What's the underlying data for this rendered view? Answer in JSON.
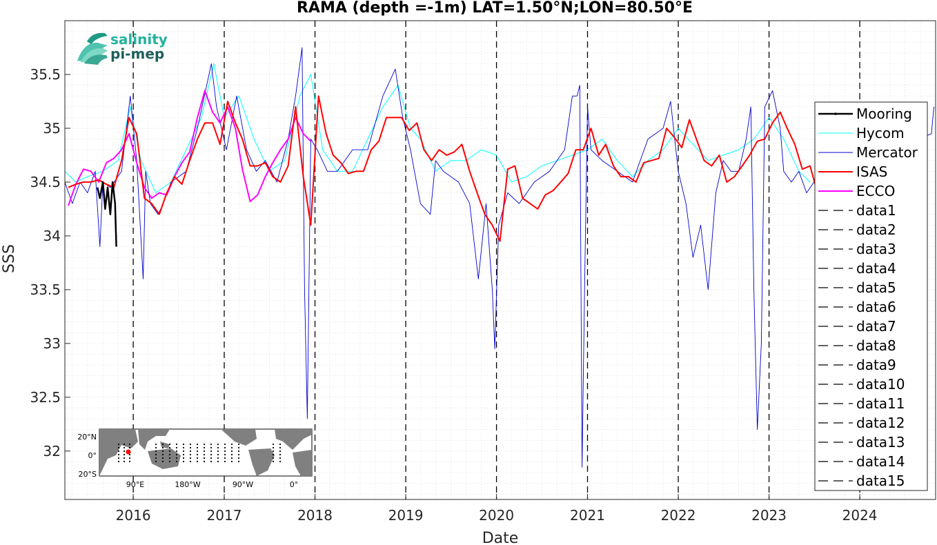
{
  "chart_data": {
    "type": "line",
    "title": "RAMA (depth =-1m) LAT=1.50°N;LON=80.50°E",
    "xlabel": "Date",
    "ylabel": "SSS",
    "xlim": [
      "2015-04-01",
      "2024-11-01"
    ],
    "ylim": [
      31.55,
      36.0
    ],
    "x_ticks": [
      "2016",
      "2017",
      "2018",
      "2019",
      "2020",
      "2021",
      "2022",
      "2023",
      "2024"
    ],
    "y_ticks": [
      "32",
      "32.5",
      "33",
      "33.5",
      "34",
      "34.5",
      "35",
      "35.5"
    ],
    "grid": "on (minor dotted)",
    "legend_position": "right",
    "colors": {
      "Mooring": "#000000",
      "Hycom": "#00ffff",
      "Mercator": "#0000cd",
      "ISAS": "#ff0000",
      "ECCO": "#ff00ff",
      "dashed": "#000000"
    },
    "series": [
      {
        "name": "Mooring",
        "x": [
          "2015-08-10",
          "2015-08-20",
          "2015-09-01",
          "2015-09-10",
          "2015-09-20",
          "2015-10-01",
          "2015-10-10",
          "2015-10-20",
          "2015-10-25"
        ],
        "y": [
          34.45,
          34.35,
          34.5,
          34.25,
          34.45,
          34.2,
          34.5,
          34.3,
          33.9
        ]
      },
      {
        "name": "Hycom",
        "x": [
          "2015-04-01",
          "2015-05-15",
          "2015-07-01",
          "2015-09-01",
          "2015-11-01",
          "2015-12-20",
          "2016-02-01",
          "2016-04-01",
          "2016-06-01",
          "2016-08-01",
          "2016-10-01",
          "2016-11-20",
          "2017-01-01",
          "2017-03-01",
          "2017-05-01",
          "2017-07-01",
          "2017-09-01",
          "2017-11-01",
          "2017-12-15",
          "2018-02-01",
          "2018-04-01",
          "2018-06-01",
          "2018-08-01",
          "2018-10-01",
          "2018-12-01",
          "2019-01-20",
          "2019-03-01",
          "2019-05-01",
          "2019-07-01",
          "2019-09-01",
          "2019-11-01",
          "2020-01-01",
          "2020-03-01",
          "2020-05-01",
          "2020-07-01",
          "2020-09-01",
          "2020-11-01",
          "2021-01-01",
          "2021-03-01",
          "2021-05-01",
          "2021-07-01",
          "2021-09-01",
          "2021-11-01",
          "2022-01-01",
          "2022-03-01",
          "2022-05-01",
          "2022-07-01",
          "2022-09-01",
          "2022-11-01",
          "2023-01-01",
          "2023-03-01",
          "2023-05-01",
          "2023-06-15"
        ],
        "y": [
          34.6,
          34.5,
          34.55,
          34.6,
          34.7,
          35.2,
          34.7,
          34.4,
          34.5,
          34.8,
          35.1,
          35.6,
          35.1,
          35.3,
          34.9,
          34.6,
          34.7,
          35.3,
          35.5,
          34.8,
          34.6,
          34.6,
          34.9,
          35.2,
          35.4,
          35.0,
          34.9,
          34.6,
          34.7,
          34.7,
          34.8,
          34.75,
          34.5,
          34.55,
          34.65,
          34.7,
          34.75,
          34.8,
          34.9,
          34.7,
          34.55,
          34.7,
          34.8,
          35.0,
          34.85,
          34.7,
          34.75,
          34.8,
          34.9,
          35.1,
          34.9,
          34.6,
          34.5
        ]
      },
      {
        "name": "Mercator",
        "x": [
          "2015-04-01",
          "2015-05-01",
          "2015-06-01",
          "2015-07-01",
          "2015-08-01",
          "2015-08-20",
          "2015-09-01",
          "2015-10-01",
          "2015-11-15",
          "2015-12-20",
          "2016-01-15",
          "2016-02-10",
          "2016-02-20",
          "2016-03-10",
          "2016-04-10",
          "2016-05-01",
          "2016-06-01",
          "2016-08-01",
          "2016-09-15",
          "2016-11-10",
          "2016-12-01",
          "2017-01-10",
          "2017-02-20",
          "2017-04-01",
          "2017-05-10",
          "2017-06-15",
          "2017-08-01",
          "2017-09-15",
          "2017-10-15",
          "2017-11-10",
          "2017-11-20",
          "2017-12-01",
          "2017-12-15",
          "2018-01-10",
          "2018-02-20",
          "2018-04-01",
          "2018-06-01",
          "2018-08-01",
          "2018-10-01",
          "2018-11-20",
          "2018-12-20",
          "2019-01-20",
          "2019-03-01",
          "2019-04-10",
          "2019-05-01",
          "2019-06-01",
          "2019-08-01",
          "2019-09-15",
          "2019-10-20",
          "2019-11-20",
          "2019-12-15",
          "2019-12-25",
          "2020-01-10",
          "2020-02-15",
          "2020-04-01",
          "2020-06-01",
          "2020-08-01",
          "2020-10-01",
          "2020-11-01",
          "2020-11-20",
          "2020-12-01",
          "2020-12-10",
          "2020-12-20",
          "2021-01-01",
          "2021-01-15",
          "2021-03-01",
          "2021-05-01",
          "2021-07-01",
          "2021-09-01",
          "2021-11-01",
          "2021-12-01",
          "2022-01-01",
          "2022-02-01",
          "2022-03-01",
          "2022-04-01",
          "2022-05-01",
          "2022-06-01",
          "2022-07-01",
          "2022-08-01",
          "2022-09-01",
          "2022-10-01",
          "2022-10-20",
          "2022-11-01",
          "2022-11-15",
          "2022-12-01",
          "2022-12-15",
          "2023-01-15",
          "2023-02-15",
          "2023-03-01",
          "2023-04-01",
          "2023-05-01",
          "2023-06-01",
          "2023-07-01",
          "2024-10-15",
          "2024-10-25"
        ],
        "y": [
          34.5,
          34.3,
          34.5,
          34.4,
          34.6,
          33.9,
          34.5,
          34.45,
          34.6,
          35.3,
          34.7,
          33.6,
          34.6,
          34.3,
          34.2,
          34.3,
          34.5,
          34.6,
          35.0,
          35.6,
          35.2,
          34.8,
          35.3,
          34.8,
          34.6,
          34.7,
          34.5,
          34.9,
          35.3,
          35.75,
          33.5,
          32.3,
          34.9,
          34.8,
          34.6,
          34.6,
          34.8,
          34.8,
          35.3,
          35.55,
          35.1,
          34.8,
          34.3,
          34.2,
          34.7,
          34.6,
          34.5,
          34.3,
          33.6,
          34.3,
          33.5,
          32.95,
          34.1,
          34.4,
          34.3,
          34.5,
          34.6,
          34.8,
          35.3,
          35.3,
          35.4,
          31.85,
          33.5,
          35.2,
          34.8,
          34.7,
          34.6,
          34.5,
          34.9,
          35.0,
          35.25,
          34.6,
          34.3,
          33.8,
          34.1,
          33.5,
          34.4,
          34.7,
          34.6,
          34.6,
          34.9,
          35.2,
          33.5,
          32.2,
          33.0,
          35.2,
          35.35,
          35.0,
          34.6,
          34.5,
          34.6,
          34.4,
          34.5,
          34.95,
          35.2
        ]
      },
      {
        "name": "ISAS",
        "x": [
          "2015-04-15",
          "2015-05-15",
          "2015-06-15",
          "2015-07-15",
          "2015-08-15",
          "2015-09-15",
          "2015-10-15",
          "2015-11-15",
          "2015-12-15",
          "2016-01-15",
          "2016-02-15",
          "2016-03-15",
          "2016-04-15",
          "2016-05-15",
          "2016-06-15",
          "2016-07-15",
          "2016-08-15",
          "2016-09-15",
          "2016-10-15",
          "2016-11-15",
          "2016-12-15",
          "2017-01-15",
          "2017-02-15",
          "2017-03-15",
          "2017-04-15",
          "2017-05-15",
          "2017-06-15",
          "2017-07-15",
          "2017-08-15",
          "2017-09-15",
          "2017-10-15",
          "2017-11-15",
          "2017-12-15",
          "2018-01-15",
          "2018-02-15",
          "2018-03-15",
          "2018-04-15",
          "2018-05-15",
          "2018-06-15",
          "2018-07-15",
          "2018-08-15",
          "2018-09-15",
          "2018-10-15",
          "2018-11-15",
          "2018-12-15",
          "2019-01-15",
          "2019-02-15",
          "2019-03-15",
          "2019-04-15",
          "2019-05-15",
          "2019-06-15",
          "2019-07-15",
          "2019-08-15",
          "2019-09-15",
          "2019-10-15",
          "2019-11-15",
          "2019-12-15",
          "2020-01-15",
          "2020-02-15",
          "2020-03-15",
          "2020-04-15",
          "2020-05-15",
          "2020-06-15",
          "2020-07-15",
          "2020-08-15",
          "2020-09-15",
          "2020-10-15",
          "2020-11-15",
          "2020-12-15",
          "2021-01-15",
          "2021-02-15",
          "2021-03-15",
          "2021-04-15",
          "2021-05-15",
          "2021-06-15",
          "2021-07-15",
          "2021-08-15",
          "2021-09-15",
          "2021-10-15",
          "2021-11-15",
          "2021-12-15",
          "2022-01-15",
          "2022-02-15",
          "2022-03-15",
          "2022-04-15",
          "2022-05-15",
          "2022-06-15",
          "2022-07-15",
          "2022-08-15",
          "2022-09-15",
          "2022-10-15",
          "2022-11-15",
          "2022-12-15",
          "2023-01-15",
          "2023-02-15",
          "2023-03-15",
          "2023-04-15",
          "2023-05-15",
          "2023-06-15",
          "2023-07-15"
        ],
        "y": [
          34.45,
          34.48,
          34.5,
          34.5,
          34.52,
          34.48,
          34.45,
          34.7,
          35.1,
          34.95,
          34.35,
          34.3,
          34.2,
          34.4,
          34.55,
          34.48,
          34.7,
          34.9,
          35.05,
          35.05,
          34.85,
          35.25,
          35.05,
          34.9,
          34.65,
          34.65,
          34.68,
          34.55,
          34.5,
          34.65,
          35.2,
          34.55,
          34.1,
          35.3,
          34.95,
          34.75,
          34.68,
          34.58,
          34.6,
          34.6,
          34.8,
          34.88,
          35.1,
          35.1,
          35.1,
          34.98,
          35.05,
          34.8,
          34.7,
          34.8,
          34.75,
          34.78,
          34.85,
          34.6,
          34.4,
          34.2,
          34.1,
          33.95,
          34.62,
          34.65,
          34.35,
          34.3,
          34.25,
          34.38,
          34.42,
          34.5,
          34.58,
          34.8,
          34.8,
          35.0,
          34.75,
          34.85,
          34.65,
          34.55,
          34.55,
          34.5,
          34.68,
          34.7,
          34.72,
          35.0,
          34.92,
          34.82,
          35.08,
          34.9,
          34.7,
          34.65,
          34.75,
          34.5,
          34.55,
          34.65,
          34.75,
          34.88,
          34.9,
          35.05,
          35.15,
          35.0,
          34.85,
          34.62,
          34.65,
          34.4
        ]
      },
      {
        "name": "ECCO",
        "x": [
          "2015-04-15",
          "2015-05-15",
          "2015-06-15",
          "2015-07-15",
          "2015-08-15",
          "2015-09-15",
          "2015-10-15",
          "2015-11-15",
          "2015-12-15",
          "2016-01-15",
          "2016-02-15",
          "2016-03-15",
          "2016-04-15",
          "2016-05-15",
          "2016-06-15",
          "2016-07-15",
          "2016-08-15",
          "2016-09-15",
          "2016-10-15",
          "2016-11-15",
          "2016-12-15",
          "2017-01-15",
          "2017-02-15",
          "2017-03-15",
          "2017-04-15",
          "2017-05-15",
          "2017-06-15",
          "2017-07-15",
          "2017-08-15",
          "2017-09-15",
          "2017-10-15",
          "2017-11-15",
          "2017-12-15"
        ],
        "y": [
          34.28,
          34.48,
          34.62,
          34.6,
          34.5,
          34.68,
          34.72,
          34.8,
          34.95,
          34.68,
          34.45,
          34.35,
          34.4,
          34.38,
          34.55,
          34.68,
          34.78,
          35.1,
          35.35,
          35.15,
          35.05,
          35.2,
          35.0,
          34.62,
          34.32,
          34.38,
          34.55,
          34.68,
          34.8,
          34.9,
          35.1,
          34.95,
          34.88
        ]
      }
    ],
    "reference_lines": {
      "style": "dashed",
      "x": [
        "2016-01-01",
        "2017-01-01",
        "2018-01-01",
        "2019-01-01",
        "2020-01-01",
        "2021-01-01",
        "2022-01-01",
        "2023-01-01",
        "2024-01-01"
      ]
    },
    "legend": [
      "Mooring",
      "Hycom",
      "Mercator",
      "ISAS",
      "ECCO",
      "data1",
      "data2",
      "data3",
      "data4",
      "data5",
      "data6",
      "data7",
      "data8",
      "data9",
      "data10",
      "data11",
      "data12",
      "data13",
      "data14",
      "data15"
    ]
  },
  "logo": {
    "line1": "salinity",
    "line2": "pi-mep"
  },
  "inset_map": {
    "y_labels": [
      "20°N",
      "0°",
      "20°S"
    ],
    "x_labels": [
      "90°E",
      "180°W",
      "90°W",
      "0°"
    ]
  }
}
